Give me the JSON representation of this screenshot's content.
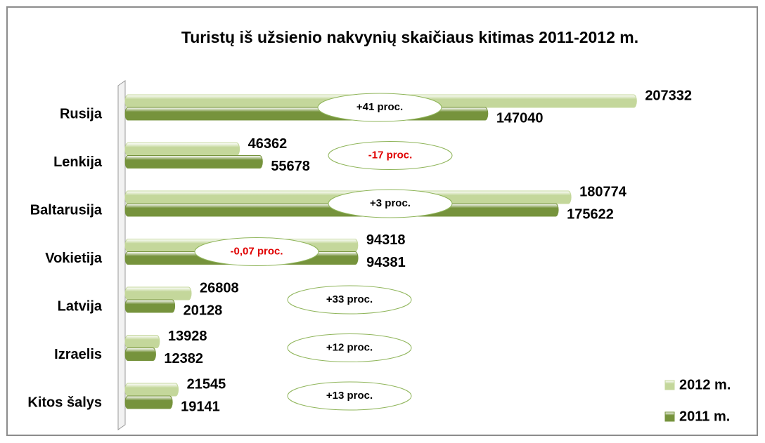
{
  "chart_data": {
    "type": "bar",
    "orientation": "horizontal",
    "title": "Turistų iš užsienio nakvynių skaičiaus kitimas 2011-2012 m.",
    "categories": [
      "Rusija",
      "Lenkija",
      "Baltarusija",
      "Vokietija",
      "Latvija",
      "Izraelis",
      "Kitos šalys"
    ],
    "series": [
      {
        "name": "2012 m.",
        "color": "#c4d79b",
        "values": [
          207332,
          46362,
          180774,
          94318,
          26808,
          13928,
          21545
        ]
      },
      {
        "name": "2011 m.",
        "color": "#76933c",
        "values": [
          147040,
          55678,
          175622,
          94381,
          20128,
          12382,
          19141
        ]
      }
    ],
    "annotations": [
      {
        "text": "+41 proc.",
        "color": "#000000"
      },
      {
        "text": "-17 proc.",
        "color": "#e00000"
      },
      {
        "text": "+3 proc.",
        "color": "#000000"
      },
      {
        "text": "-0,07 proc.",
        "color": "#e00000"
      },
      {
        "text": "+33 proc.",
        "color": "#000000"
      },
      {
        "text": "+12 proc.",
        "color": "#000000"
      },
      {
        "text": "+13 proc.",
        "color": "#000000"
      }
    ],
    "xlim": [
      0,
      250000
    ],
    "legend": "lower right"
  }
}
